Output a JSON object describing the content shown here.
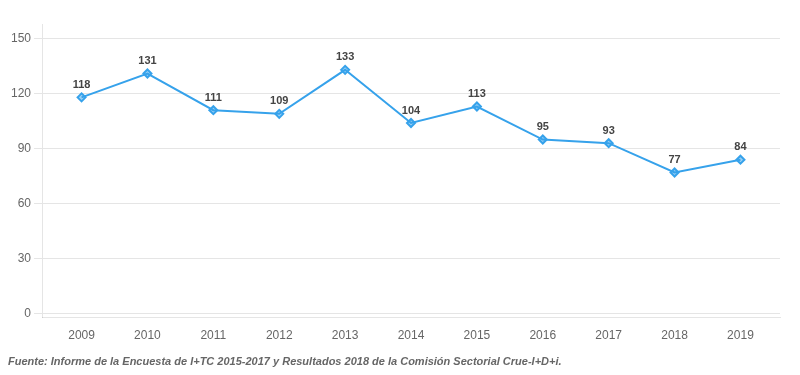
{
  "chart_data": {
    "type": "line",
    "x": [
      2009,
      2010,
      2011,
      2012,
      2013,
      2014,
      2015,
      2016,
      2017,
      2018,
      2019
    ],
    "values": [
      118,
      131,
      111,
      109,
      133,
      104,
      113,
      95,
      93,
      77,
      84
    ],
    "xlim": [
      2008.4,
      2019.6
    ],
    "xticks": [
      2009,
      2010,
      2011,
      2012,
      2013,
      2014,
      2015,
      2016,
      2017,
      2018,
      2019
    ],
    "ylim": [
      -2,
      158
    ],
    "yticks": [
      0,
      30,
      60,
      90,
      120,
      150
    ],
    "grid": "y",
    "marker": "diamond",
    "data_labels": true,
    "source": "Fuente: Informe de la Encuesta de I+TC 2015-2017 y Resultados 2018 de la Comisión Sectorial Crue-I+D+i."
  }
}
